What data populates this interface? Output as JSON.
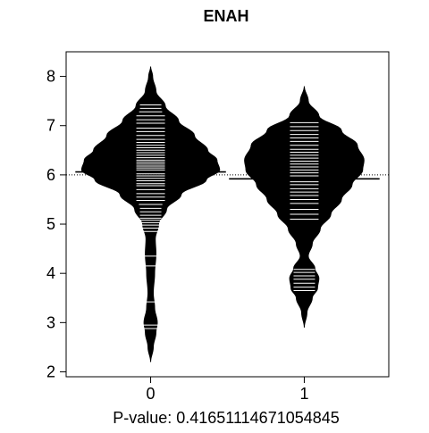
{
  "chart_data": {
    "type": "beanplot",
    "title": "ENAH",
    "subtitle": "",
    "xlabel": "P-value: 0.41651114671054845",
    "ylabel": "",
    "categories": [
      "0",
      "1"
    ],
    "ylim": [
      1.9,
      8.5
    ],
    "xlim": [
      0.45,
      2.55
    ],
    "yticks": [
      2,
      3,
      4,
      5,
      6,
      7,
      8
    ],
    "overall_mean": 6.0,
    "overall_mean_line_style": "dotted",
    "grid": false,
    "legend": "none",
    "colors": {
      "bean_fill": "#000000",
      "data_lines": "#ffffff",
      "background": "#ffffff"
    },
    "series": [
      {
        "category": "0",
        "mean": 6.06,
        "min": 2.2,
        "max": 8.2,
        "density_profile": [
          [
            2.2,
            0.0
          ],
          [
            2.5,
            0.02
          ],
          [
            2.8,
            0.04
          ],
          [
            3.0,
            0.05
          ],
          [
            3.3,
            0.03
          ],
          [
            3.6,
            0.02
          ],
          [
            4.0,
            0.03
          ],
          [
            4.4,
            0.04
          ],
          [
            4.7,
            0.035
          ],
          [
            5.0,
            0.06
          ],
          [
            5.3,
            0.12
          ],
          [
            5.6,
            0.23
          ],
          [
            5.9,
            0.42
          ],
          [
            6.1,
            0.52
          ],
          [
            6.3,
            0.5
          ],
          [
            6.5,
            0.43
          ],
          [
            6.8,
            0.33
          ],
          [
            7.1,
            0.21
          ],
          [
            7.4,
            0.11
          ],
          [
            7.7,
            0.04
          ],
          [
            8.0,
            0.015
          ],
          [
            8.2,
            0.0
          ]
        ],
        "observations": [
          2.88,
          2.95,
          3.42,
          4.15,
          4.35,
          4.85,
          4.92,
          4.98,
          5.03,
          5.08,
          5.12,
          5.18,
          5.25,
          5.32,
          5.4,
          5.48,
          5.55,
          5.62,
          5.7,
          5.78,
          5.82,
          5.88,
          5.93,
          5.98,
          6.02,
          6.06,
          6.1,
          6.14,
          6.18,
          6.22,
          6.26,
          6.3,
          6.35,
          6.4,
          6.45,
          6.5,
          6.55,
          6.6,
          6.66,
          6.72,
          6.8,
          6.88,
          6.95,
          7.05,
          7.12,
          7.2,
          7.28,
          7.35,
          7.42
        ]
      },
      {
        "category": "1",
        "mean": 5.92,
        "min": 2.9,
        "max": 7.8,
        "density_profile": [
          [
            2.9,
            0.0
          ],
          [
            3.2,
            0.02
          ],
          [
            3.5,
            0.06
          ],
          [
            3.7,
            0.1
          ],
          [
            3.9,
            0.11
          ],
          [
            4.1,
            0.08
          ],
          [
            4.35,
            0.03
          ],
          [
            4.6,
            0.06
          ],
          [
            4.9,
            0.12
          ],
          [
            5.2,
            0.2
          ],
          [
            5.5,
            0.28
          ],
          [
            5.8,
            0.36
          ],
          [
            6.1,
            0.44
          ],
          [
            6.3,
            0.45
          ],
          [
            6.6,
            0.4
          ],
          [
            6.9,
            0.28
          ],
          [
            7.2,
            0.11
          ],
          [
            7.5,
            0.03
          ],
          [
            7.8,
            0.0
          ]
        ],
        "observations": [
          3.65,
          3.72,
          3.8,
          3.88,
          3.95,
          4.02,
          4.08,
          5.1,
          5.2,
          5.3,
          5.42,
          5.5,
          5.58,
          5.65,
          5.72,
          5.8,
          5.86,
          5.92,
          5.98,
          6.04,
          6.1,
          6.16,
          6.22,
          6.28,
          6.34,
          6.4,
          6.46,
          6.52,
          6.6,
          6.68,
          6.75,
          6.82,
          6.9,
          6.98,
          7.06
        ]
      }
    ]
  }
}
